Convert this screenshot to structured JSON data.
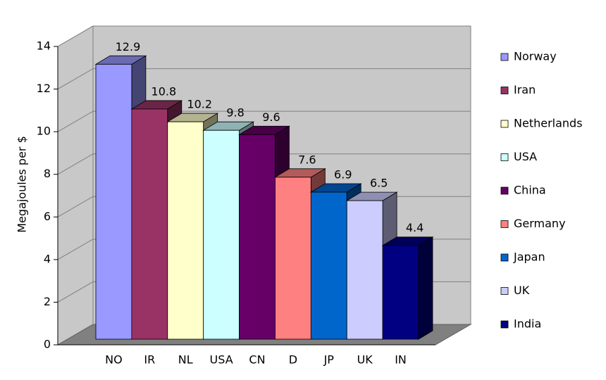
{
  "chart_data": {
    "type": "bar3d",
    "y_label": "Megajoules per $",
    "categories": [
      "NO",
      "IR",
      "NL",
      "USA",
      "CN",
      "D",
      "JP",
      "UK",
      "IN"
    ],
    "values": [
      12.9,
      10.8,
      10.2,
      9.8,
      9.6,
      7.6,
      6.9,
      6.5,
      4.4
    ],
    "colors": [
      "#9999ff",
      "#993366",
      "#ffffcc",
      "#ccffff",
      "#660066",
      "#ff8080",
      "#0066cc",
      "#ccccff",
      "#000080"
    ],
    "legend_labels": [
      "Norway",
      "Iran",
      "Netherlands",
      "USA",
      "China",
      "Germany",
      "Japan",
      "UK",
      "India"
    ],
    "ylim": [
      0,
      14
    ],
    "yticks": [
      0,
      2,
      4,
      6,
      8,
      10,
      12,
      14
    ],
    "grid": true
  }
}
